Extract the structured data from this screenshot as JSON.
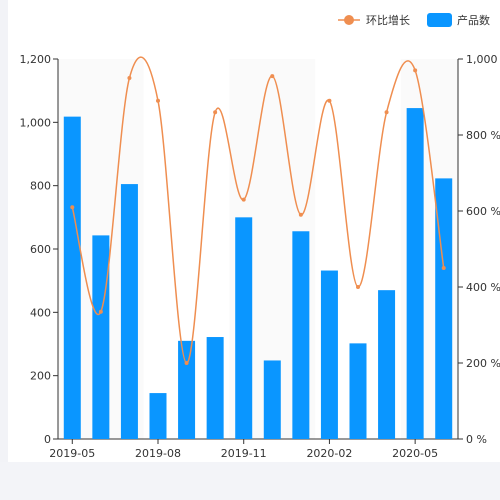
{
  "chart_data": {
    "type": "bar",
    "categories": [
      "2019-05",
      "2019-06",
      "2019-07",
      "2019-08",
      "2019-09",
      "2019-10",
      "2019-11",
      "2019-12",
      "2020-01",
      "2020-02",
      "2020-03",
      "2020-04",
      "2020-05",
      "2020-06"
    ],
    "x_tick_labels": [
      "2019-05",
      "2019-08",
      "2019-11",
      "2020-02",
      "2020-05"
    ],
    "series": [
      {
        "name": "产品数",
        "type": "bar",
        "axis": "left",
        "color": "#0a96ff",
        "values": [
          1018,
          643,
          805,
          145,
          310,
          322,
          700,
          248,
          656,
          532,
          302,
          470,
          1045,
          823
        ]
      },
      {
        "name": "环比增长",
        "type": "line",
        "axis": "right",
        "color": "#ef8e50",
        "values": [
          610,
          335,
          950,
          890,
          200,
          860,
          630,
          955,
          590,
          890,
          400,
          860,
          970,
          450
        ]
      }
    ],
    "y_left": {
      "ylim": [
        0,
        1200
      ],
      "ticks": [
        "0",
        "200",
        "400",
        "600",
        "800",
        "1,000",
        "1,200"
      ]
    },
    "y_right": {
      "ylim": [
        0,
        1000
      ],
      "ticks": [
        "0 %",
        "200 %",
        "400 %",
        "600 %",
        "800 %",
        "1,000"
      ]
    },
    "legend": {
      "position": "top-right",
      "items": [
        "环比增长",
        "产品数"
      ]
    },
    "grid": false
  }
}
